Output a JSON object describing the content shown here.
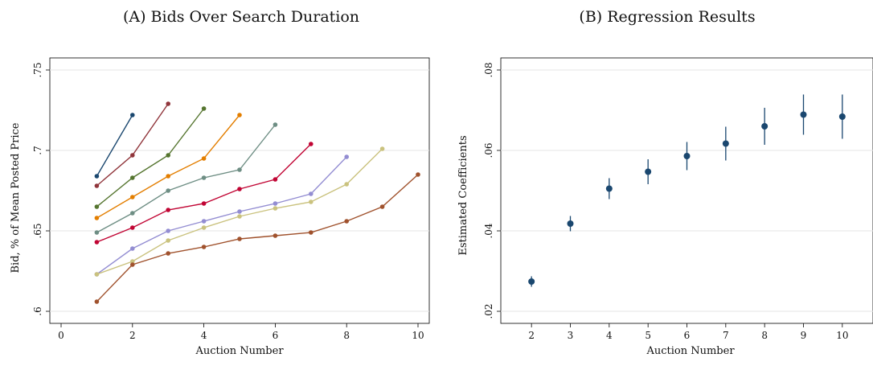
{
  "chart_data": [
    {
      "type": "line",
      "title": "(A) Bids Over Search Duration",
      "xlabel": "Auction Number",
      "ylabel": "Bid, % of Mean Posted Price",
      "xlim": [
        0,
        10
      ],
      "ylim": [
        0.6,
        0.75
      ],
      "xticks": [
        0,
        2,
        4,
        6,
        8,
        10
      ],
      "xtick_labels": [
        "0",
        "2",
        "4",
        "6",
        "8",
        "10"
      ],
      "yticks": [
        0.6,
        0.65,
        0.7,
        0.75
      ],
      "ytick_labels": [
        ".6",
        ".65",
        ".7",
        ".75"
      ],
      "grid": "horizontal",
      "legend": "none",
      "series": [
        {
          "color": "#1a476f",
          "x": [
            1,
            2
          ],
          "y": [
            0.684,
            0.722
          ]
        },
        {
          "color": "#90353b",
          "x": [
            1,
            2,
            3
          ],
          "y": [
            0.678,
            0.697,
            0.729
          ]
        },
        {
          "color": "#55752f",
          "x": [
            1,
            2,
            3,
            4
          ],
          "y": [
            0.665,
            0.683,
            0.697,
            0.726
          ]
        },
        {
          "color": "#e37e00",
          "x": [
            1,
            2,
            3,
            4,
            5
          ],
          "y": [
            0.658,
            0.671,
            0.684,
            0.695,
            0.722
          ]
        },
        {
          "color": "#6e8e84",
          "x": [
            1,
            2,
            3,
            4,
            5,
            6
          ],
          "y": [
            0.649,
            0.661,
            0.675,
            0.683,
            0.688,
            0.716
          ]
        },
        {
          "color": "#c10534",
          "x": [
            1,
            2,
            3,
            4,
            5,
            6,
            7
          ],
          "y": [
            0.643,
            0.652,
            0.663,
            0.667,
            0.676,
            0.682,
            0.704
          ]
        },
        {
          "color": "#938dd2",
          "x": [
            1,
            2,
            3,
            4,
            5,
            6,
            7,
            8
          ],
          "y": [
            0.623,
            0.639,
            0.65,
            0.656,
            0.662,
            0.667,
            0.673,
            0.696
          ]
        },
        {
          "color": "#cac27e",
          "x": [
            1,
            2,
            3,
            4,
            5,
            6,
            7,
            8,
            9
          ],
          "y": [
            0.623,
            0.631,
            0.644,
            0.652,
            0.659,
            0.664,
            0.668,
            0.679,
            0.701
          ]
        },
        {
          "color": "#a0522d",
          "x": [
            1,
            2,
            3,
            4,
            5,
            6,
            7,
            8,
            9,
            10
          ],
          "y": [
            0.606,
            0.629,
            0.636,
            0.64,
            0.645,
            0.647,
            0.649,
            0.656,
            0.665,
            0.685
          ]
        }
      ]
    },
    {
      "type": "scatter",
      "title": "(B) Regression Results",
      "xlabel": "Auction Number",
      "ylabel": "Estimated Coefficients",
      "xlim": [
        1.5,
        10.5
      ],
      "ylim": [
        0.02,
        0.08
      ],
      "xticks": [
        2,
        3,
        4,
        5,
        6,
        7,
        8,
        9,
        10
      ],
      "xtick_labels": [
        "2",
        "3",
        "4",
        "5",
        "6",
        "7",
        "8",
        "9",
        "10"
      ],
      "yticks": [
        0.02,
        0.04,
        0.06,
        0.08
      ],
      "ytick_labels": [
        ".02",
        ".04",
        ".06",
        ".08"
      ],
      "grid": "horizontal",
      "legend": "none",
      "marker_color": "#1a476f",
      "series": [
        {
          "x": [
            2,
            3,
            4,
            5,
            6,
            7,
            8,
            9,
            10
          ],
          "y": [
            0.0274,
            0.0418,
            0.0505,
            0.0547,
            0.0586,
            0.0617,
            0.066,
            0.0689,
            0.0684
          ],
          "ci_low": [
            0.0261,
            0.0399,
            0.0479,
            0.0516,
            0.0551,
            0.0575,
            0.0614,
            0.0639,
            0.0629
          ],
          "ci_high": [
            0.0287,
            0.0437,
            0.0531,
            0.0578,
            0.0621,
            0.0659,
            0.0706,
            0.0739,
            0.0739
          ]
        }
      ]
    }
  ]
}
